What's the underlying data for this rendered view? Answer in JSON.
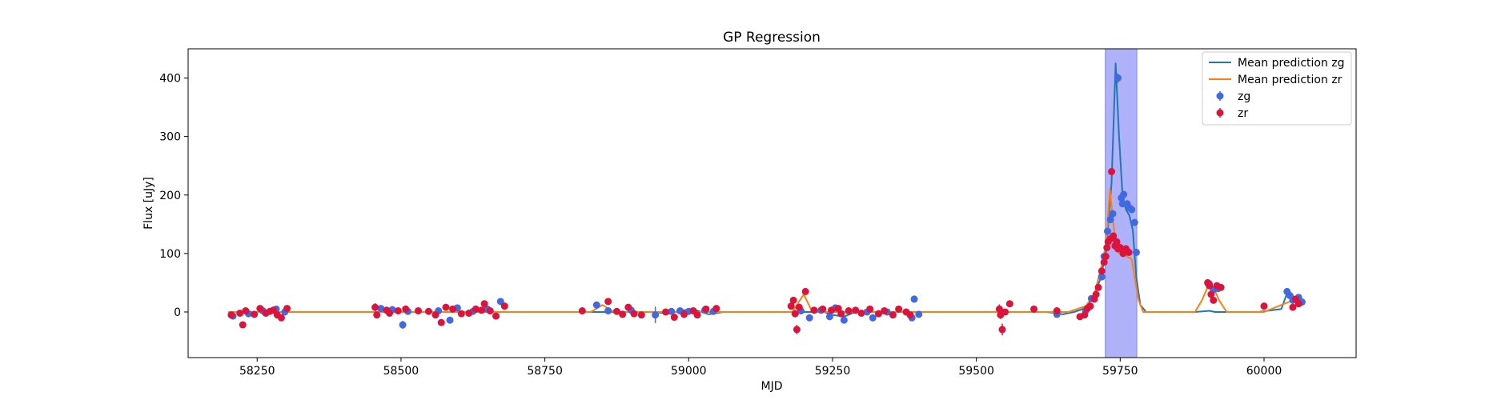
{
  "chart_data": {
    "type": "scatter",
    "title": "GP Regression",
    "xlabel": "MJD",
    "ylabel": "Flux [uJy]",
    "xlim": [
      58130,
      60160
    ],
    "ylim": [
      -78,
      450
    ],
    "x_ticks": [
      58250,
      58500,
      58750,
      59000,
      59250,
      59500,
      59750,
      60000
    ],
    "x_tick_labels": [
      "58250",
      "58500",
      "58750",
      "59000",
      "59250",
      "59500",
      "59750",
      "60000"
    ],
    "y_ticks": [
      0,
      100,
      200,
      300,
      400
    ],
    "y_tick_labels": [
      "0",
      "100",
      "200",
      "300",
      "400"
    ],
    "grid": false,
    "legend_position": "top-right",
    "highlight_span": {
      "x": [
        59724,
        59779
      ],
      "color": "#a6a8f8"
    },
    "lines": [
      {
        "name": "Mean prediction zg",
        "color": "#1f77b4",
        "x": [
          58200,
          58305,
          58315,
          58700,
          58940,
          58965,
          58990,
          59010,
          59035,
          59060,
          59170,
          59235,
          59250,
          59270,
          59290,
          59400,
          59520,
          59620,
          59640,
          59650,
          59670,
          59685,
          59700,
          59715,
          59725,
          59735,
          59742,
          59748,
          59754,
          59760,
          59766,
          59772,
          59778,
          59785,
          59795,
          59880,
          59905,
          59915,
          59935,
          59990,
          60030,
          60042,
          60052,
          60065
        ],
        "y": [
          0,
          0,
          0,
          0,
          0,
          -3,
          3,
          4,
          -4,
          0,
          0,
          0,
          -5,
          -8,
          0,
          0,
          0,
          0,
          -2,
          -4,
          0,
          5,
          20,
          55,
          100,
          220,
          425,
          300,
          200,
          175,
          165,
          140,
          60,
          12,
          0,
          0,
          2,
          0,
          0,
          0,
          5,
          38,
          25,
          10
        ]
      },
      {
        "name": "Mean prediction zr",
        "color": "#ff7f0e",
        "x": [
          58200,
          58305,
          58460,
          58680,
          58830,
          58850,
          58870,
          59180,
          59200,
          59215,
          59540,
          59560,
          59660,
          59690,
          59705,
          59718,
          59726,
          59732,
          59737,
          59742,
          59748,
          59755,
          59762,
          59770,
          59775,
          59782,
          59790,
          59880,
          59892,
          59903,
          59913,
          59922,
          59935,
          60000,
          60050,
          60065
        ],
        "y": [
          0,
          0,
          0,
          0,
          0,
          12,
          0,
          0,
          30,
          0,
          0,
          0,
          0,
          10,
          30,
          80,
          120,
          210,
          160,
          120,
          100,
          100,
          95,
          90,
          60,
          20,
          0,
          0,
          20,
          45,
          40,
          20,
          0,
          0,
          20,
          15
        ]
      }
    ],
    "series": [
      {
        "name": "zg",
        "color": "#4169e1",
        "points": [
          [
            58208,
            -7,
            5
          ],
          [
            58235,
            -3,
            5
          ],
          [
            58260,
            2,
            4
          ],
          [
            58283,
            5,
            4
          ],
          [
            58298,
            0,
            4
          ],
          [
            58465,
            6,
            5
          ],
          [
            58485,
            4,
            5
          ],
          [
            58503,
            -22,
            7
          ],
          [
            58512,
            1,
            4
          ],
          [
            58565,
            2,
            4
          ],
          [
            58585,
            -14,
            5
          ],
          [
            58598,
            7,
            5
          ],
          [
            58625,
            1,
            4
          ],
          [
            58650,
            5,
            4
          ],
          [
            58673,
            18,
            5
          ],
          [
            58840,
            12,
            6
          ],
          [
            58860,
            2,
            4
          ],
          [
            58900,
            3,
            4
          ],
          [
            58942,
            -5,
            14
          ],
          [
            58970,
            1,
            4
          ],
          [
            58985,
            2,
            4
          ],
          [
            59000,
            1,
            4
          ],
          [
            59028,
            3,
            4
          ],
          [
            59043,
            1,
            4
          ],
          [
            59195,
            2,
            4
          ],
          [
            59210,
            -10,
            5
          ],
          [
            59230,
            3,
            4
          ],
          [
            59245,
            -8,
            5
          ],
          [
            59255,
            7,
            5
          ],
          [
            59270,
            -14,
            5
          ],
          [
            59310,
            0,
            4
          ],
          [
            59320,
            -10,
            6
          ],
          [
            59345,
            0,
            4
          ],
          [
            59388,
            -10,
            5
          ],
          [
            59392,
            22,
            5
          ],
          [
            59400,
            -4,
            4
          ],
          [
            59640,
            -4,
            4
          ],
          [
            59690,
            2,
            4
          ],
          [
            59700,
            23,
            5
          ],
          [
            59718,
            60,
            5
          ],
          [
            59722,
            95,
            5
          ],
          [
            59728,
            138,
            6
          ],
          [
            59733,
            158,
            6
          ],
          [
            59737,
            168,
            6
          ],
          [
            59746,
            400,
            8
          ],
          [
            59752,
            195,
            6
          ],
          [
            59754,
            185,
            6
          ],
          [
            59756,
            201,
            6
          ],
          [
            59762,
            185,
            6
          ],
          [
            59766,
            178,
            6
          ],
          [
            59770,
            175,
            6
          ],
          [
            59775,
            153,
            6
          ],
          [
            59778,
            102,
            6
          ],
          [
            59905,
            48,
            5
          ],
          [
            59912,
            38,
            5
          ],
          [
            59920,
            40,
            5
          ],
          [
            60040,
            35,
            6
          ],
          [
            60045,
            28,
            5
          ],
          [
            60050,
            20,
            5
          ],
          [
            60060,
            25,
            5
          ],
          [
            60066,
            17,
            5
          ]
        ]
      },
      {
        "name": "zr",
        "color": "#dc143c",
        "points": [
          [
            58205,
            -5,
            4
          ],
          [
            58220,
            -2,
            4
          ],
          [
            58225,
            -22,
            5
          ],
          [
            58230,
            2,
            4
          ],
          [
            58245,
            -4,
            4
          ],
          [
            58255,
            6,
            4
          ],
          [
            58265,
            -2,
            4
          ],
          [
            58272,
            1,
            4
          ],
          [
            58278,
            3,
            4
          ],
          [
            58285,
            -5,
            4
          ],
          [
            58292,
            -10,
            4
          ],
          [
            58302,
            6,
            4
          ],
          [
            58455,
            8,
            7
          ],
          [
            58458,
            -5,
            5
          ],
          [
            58475,
            3,
            4
          ],
          [
            58480,
            -2,
            4
          ],
          [
            58495,
            2,
            4
          ],
          [
            58508,
            5,
            4
          ],
          [
            58530,
            2,
            4
          ],
          [
            58548,
            1,
            4
          ],
          [
            58560,
            -5,
            4
          ],
          [
            58570,
            -18,
            5
          ],
          [
            58578,
            8,
            5
          ],
          [
            58590,
            5,
            5
          ],
          [
            58605,
            -3,
            4
          ],
          [
            58618,
            -2,
            4
          ],
          [
            58630,
            5,
            4
          ],
          [
            58640,
            3,
            4
          ],
          [
            58645,
            14,
            6
          ],
          [
            58655,
            2,
            4
          ],
          [
            58665,
            -7,
            4
          ],
          [
            58680,
            10,
            5
          ],
          [
            58815,
            2,
            6
          ],
          [
            58860,
            18,
            5
          ],
          [
            58875,
            1,
            4
          ],
          [
            58885,
            -4,
            4
          ],
          [
            58895,
            8,
            4
          ],
          [
            58905,
            -3,
            4
          ],
          [
            58918,
            -5,
            4
          ],
          [
            58960,
            0,
            4
          ],
          [
            58975,
            -9,
            4
          ],
          [
            58992,
            -4,
            4
          ],
          [
            59008,
            2,
            4
          ],
          [
            59015,
            -5,
            4
          ],
          [
            59030,
            5,
            4
          ],
          [
            59048,
            6,
            4
          ],
          [
            59178,
            10,
            6
          ],
          [
            59182,
            20,
            6
          ],
          [
            59185,
            -3,
            6
          ],
          [
            59188,
            -30,
            8
          ],
          [
            59192,
            8,
            6
          ],
          [
            59203,
            35,
            5
          ],
          [
            59218,
            3,
            4
          ],
          [
            59233,
            5,
            4
          ],
          [
            59248,
            3,
            4
          ],
          [
            59260,
            6,
            5
          ],
          [
            59265,
            -3,
            4
          ],
          [
            59278,
            2,
            4
          ],
          [
            59290,
            3,
            4
          ],
          [
            59300,
            -2,
            4
          ],
          [
            59315,
            5,
            4
          ],
          [
            59330,
            -3,
            4
          ],
          [
            59340,
            2,
            4
          ],
          [
            59355,
            -5,
            4
          ],
          [
            59365,
            5,
            4
          ],
          [
            59378,
            0,
            4
          ],
          [
            59385,
            -5,
            4
          ],
          [
            59540,
            5,
            8
          ],
          [
            59542,
            -5,
            7
          ],
          [
            59545,
            -30,
            10
          ],
          [
            59550,
            0,
            5
          ],
          [
            59558,
            14,
            5
          ],
          [
            59600,
            5,
            4
          ],
          [
            59640,
            2,
            4
          ],
          [
            59680,
            -8,
            4
          ],
          [
            59688,
            -5,
            4
          ],
          [
            59693,
            6,
            4
          ],
          [
            59698,
            10,
            5
          ],
          [
            59705,
            22,
            5
          ],
          [
            59708,
            30,
            5
          ],
          [
            59712,
            42,
            5
          ],
          [
            59718,
            70,
            5
          ],
          [
            59722,
            85,
            5
          ],
          [
            59725,
            95,
            5
          ],
          [
            59727,
            110,
            5
          ],
          [
            59729,
            120,
            6
          ],
          [
            59733,
            125,
            6
          ],
          [
            59735,
            240,
            6
          ],
          [
            59738,
            130,
            6
          ],
          [
            59741,
            113,
            6
          ],
          [
            59744,
            120,
            6
          ],
          [
            59746,
            108,
            6
          ],
          [
            59750,
            110,
            6
          ],
          [
            59755,
            100,
            6
          ],
          [
            59760,
            108,
            6
          ],
          [
            59765,
            102,
            6
          ],
          [
            59902,
            50,
            5
          ],
          [
            59905,
            45,
            5
          ],
          [
            59908,
            30,
            5
          ],
          [
            59912,
            20,
            5
          ],
          [
            59918,
            45,
            5
          ],
          [
            59925,
            42,
            5
          ],
          [
            60000,
            10,
            4
          ],
          [
            60050,
            8,
            4
          ],
          [
            60055,
            22,
            5
          ],
          [
            60060,
            14,
            5
          ]
        ]
      }
    ],
    "legend": [
      {
        "label": "Mean prediction zg",
        "kind": "line",
        "color": "#1f77b4"
      },
      {
        "label": "Mean prediction zr",
        "kind": "line",
        "color": "#ff7f0e"
      },
      {
        "label": "zg",
        "kind": "marker",
        "color": "#4169e1"
      },
      {
        "label": "zr",
        "kind": "marker",
        "color": "#dc143c"
      }
    ]
  }
}
